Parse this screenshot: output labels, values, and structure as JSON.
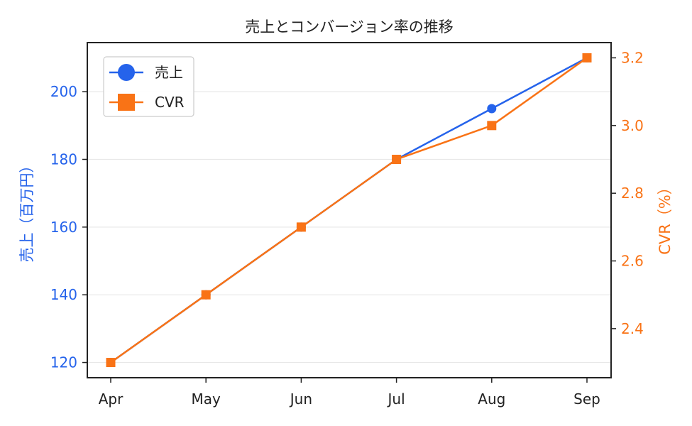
{
  "chart_data": {
    "type": "line",
    "title": "売上とコンバージョン率の推移",
    "categories": [
      "Apr",
      "May",
      "Jun",
      "Jul",
      "Aug",
      "Sep"
    ],
    "series": [
      {
        "name": "売上",
        "axis": "left",
        "marker": "circle",
        "color": "#2563eb",
        "values": [
          120,
          140,
          160,
          180,
          195,
          210
        ]
      },
      {
        "name": "CVR",
        "axis": "right",
        "marker": "square",
        "color": "#f97316",
        "values": [
          2.3,
          2.5,
          2.7,
          2.9,
          3.0,
          3.2
        ]
      }
    ],
    "y_left": {
      "label": "売上（百万円）",
      "range": [
        115.5,
        214.5
      ],
      "ticks": [
        "120",
        "140",
        "160",
        "180",
        "200"
      ],
      "tick_values": [
        120,
        140,
        160,
        180,
        200
      ],
      "color": "#2563eb"
    },
    "y_right": {
      "label": "CVR（%）",
      "range": [
        2.255,
        3.245
      ],
      "ticks": [
        "2.4",
        "2.6",
        "2.8",
        "3.0",
        "3.2"
      ],
      "tick_values": [
        2.4,
        2.6,
        2.8,
        3.0,
        3.2
      ],
      "color": "#f97316"
    },
    "grid": "horizontal",
    "legend_position": "top-left"
  }
}
